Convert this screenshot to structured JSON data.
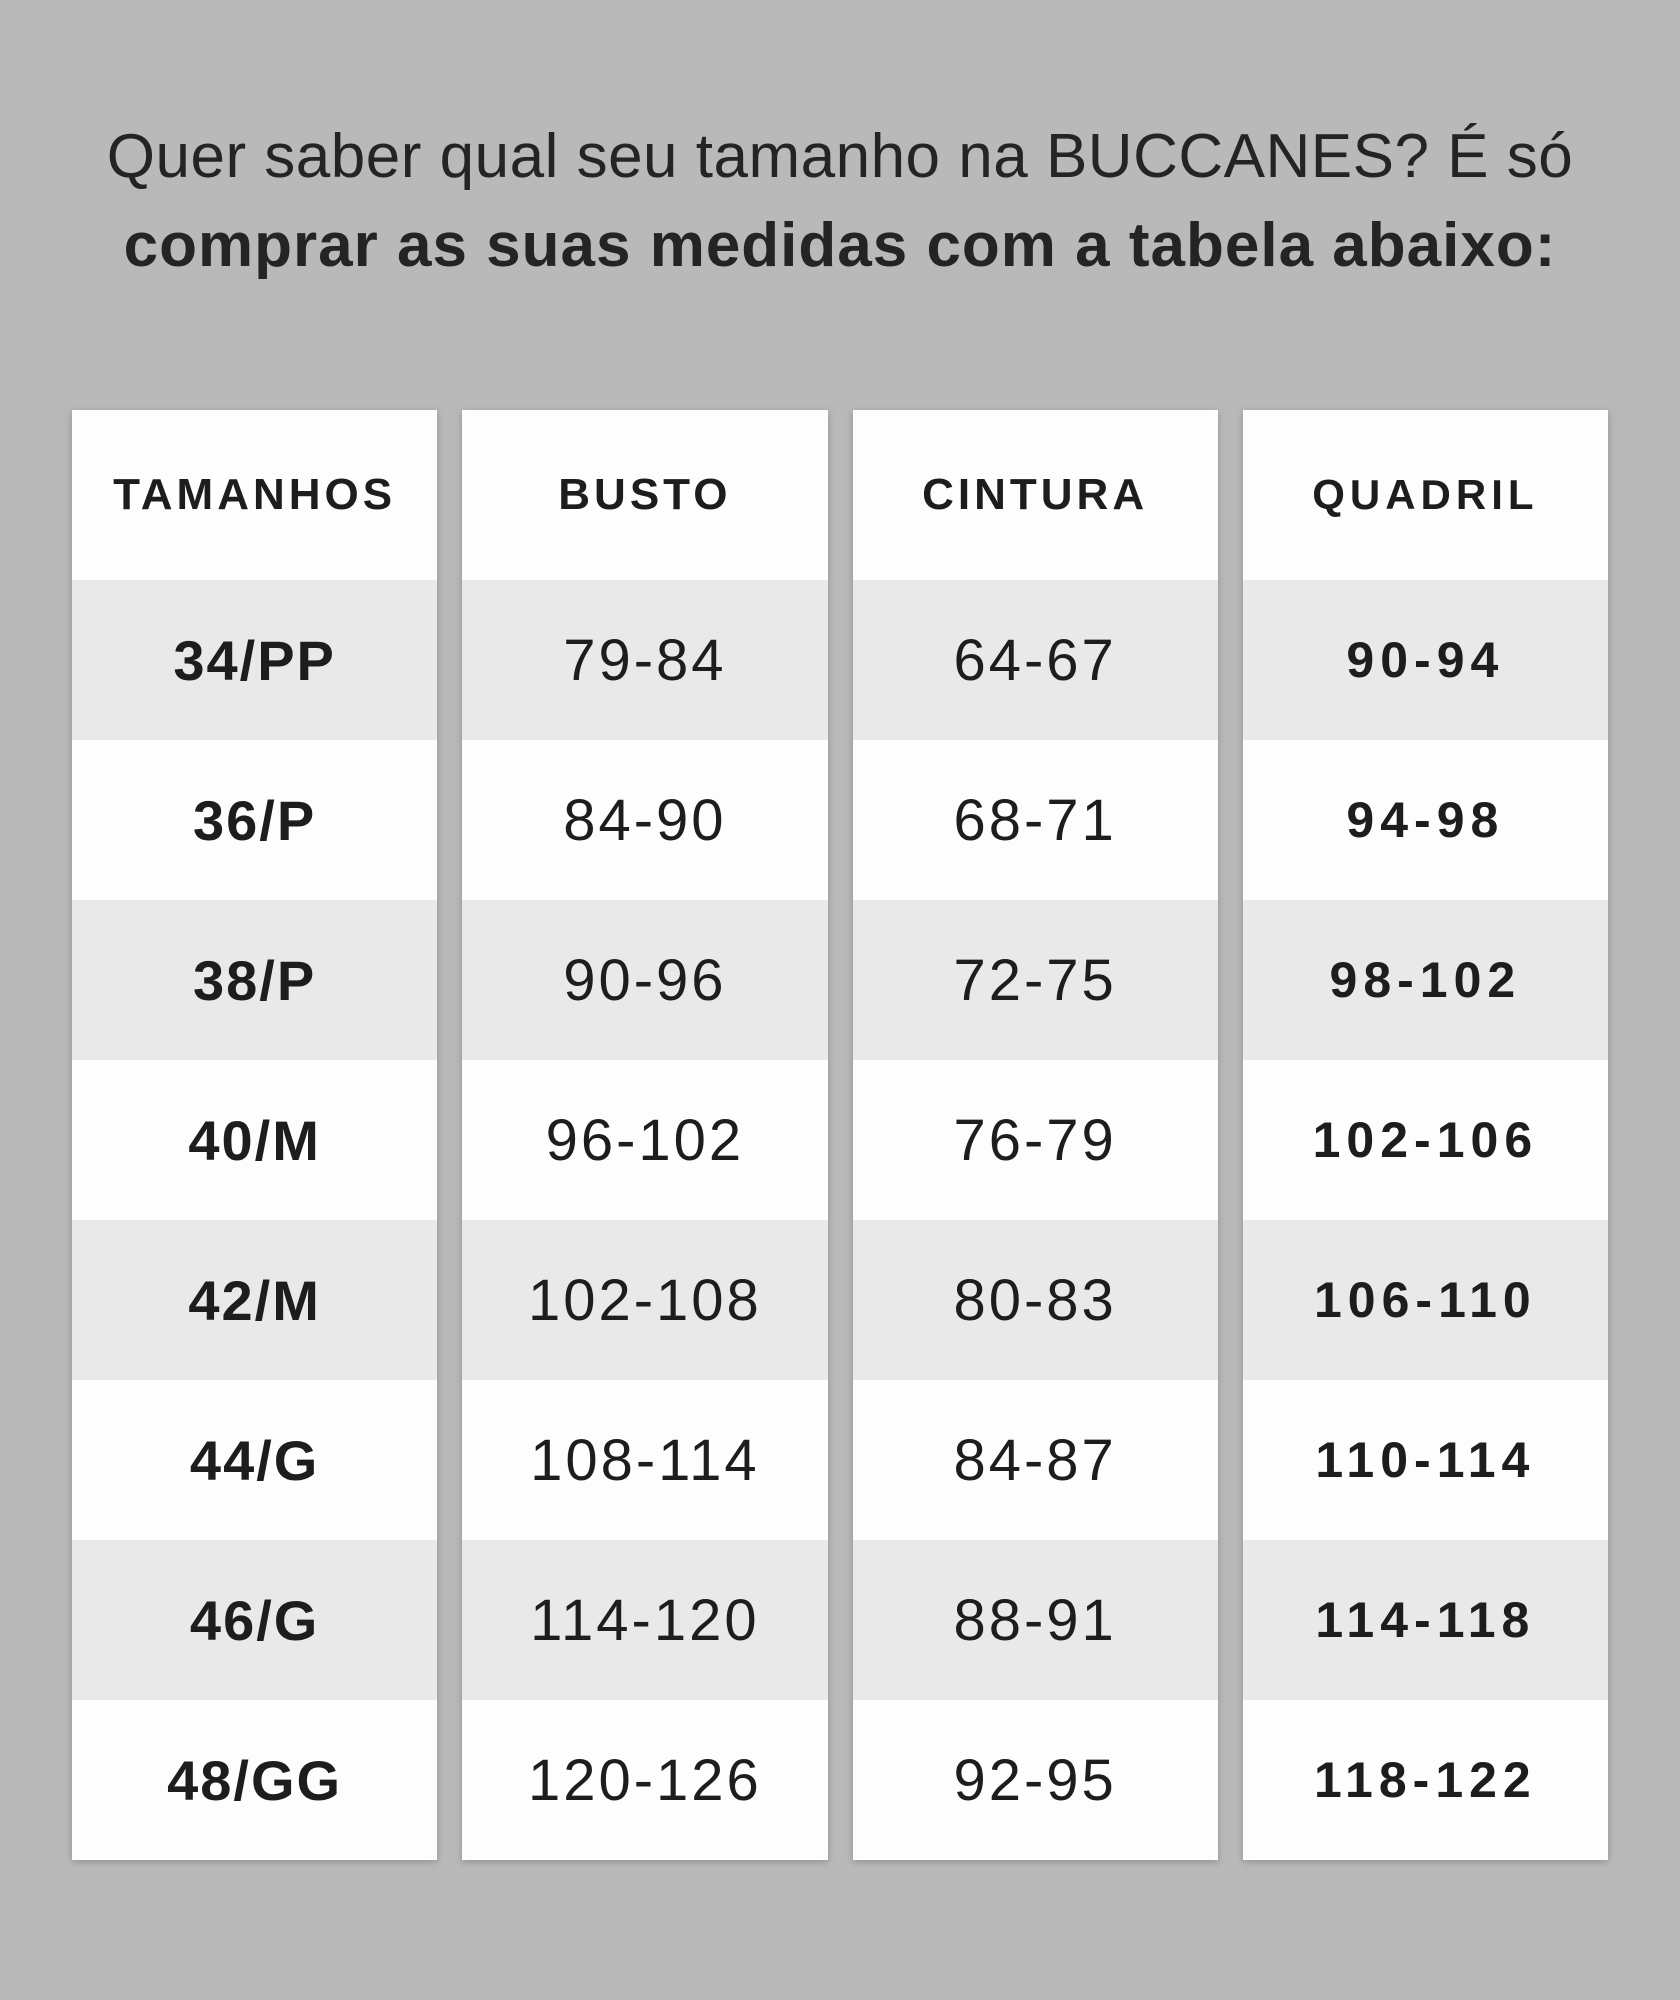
{
  "page": {
    "background_color": "#b9b9b9",
    "panel_color": "#fdfdfd",
    "alt_row_color": "#e9e9e9",
    "text_color": "#1d1d1d"
  },
  "title": {
    "line1": "Quer saber qual seu tamanho na BUCCANES? É só",
    "line2": "comprar as suas medidas com a tabela abaixo:"
  },
  "table": {
    "columns": [
      {
        "header": "TAMANHOS",
        "values": [
          "34/PP",
          "36/P",
          "38/P",
          "40/M",
          "42/M",
          "44/G",
          "46/G",
          "48/GG"
        ]
      },
      {
        "header": "BUSTO",
        "values": [
          "79-84",
          "84-90",
          "90-96",
          "96-102",
          "102-108",
          "108-114",
          "114-120",
          "120-126"
        ]
      },
      {
        "header": "CINTURA",
        "values": [
          "64-67",
          "68-71",
          "72-75",
          "76-79",
          "80-83",
          "84-87",
          "88-91",
          "92-95"
        ]
      },
      {
        "header": "QUADRIL",
        "values": [
          "90-94",
          "94-98",
          "98-102",
          "102-106",
          "106-110",
          "110-114",
          "114-118",
          "118-122"
        ]
      }
    ]
  },
  "chart_data": {
    "type": "table",
    "title": "Quer saber qual seu tamanho na BUCCANES? É só comprar as suas medidas com a tabela abaixo:",
    "columns": [
      "TAMANHOS",
      "BUSTO",
      "CINTURA",
      "QUADRIL"
    ],
    "rows": [
      [
        "34/PP",
        "79-84",
        "64-67",
        "90-94"
      ],
      [
        "36/P",
        "84-90",
        "68-71",
        "94-98"
      ],
      [
        "38/P",
        "90-96",
        "72-75",
        "98-102"
      ],
      [
        "40/M",
        "96-102",
        "76-79",
        "102-106"
      ],
      [
        "42/M",
        "102-108",
        "80-83",
        "106-110"
      ],
      [
        "44/G",
        "108-114",
        "84-87",
        "110-114"
      ],
      [
        "46/G",
        "114-120",
        "88-91",
        "114-118"
      ],
      [
        "48/GG",
        "120-126",
        "92-95",
        "118-122"
      ]
    ]
  }
}
